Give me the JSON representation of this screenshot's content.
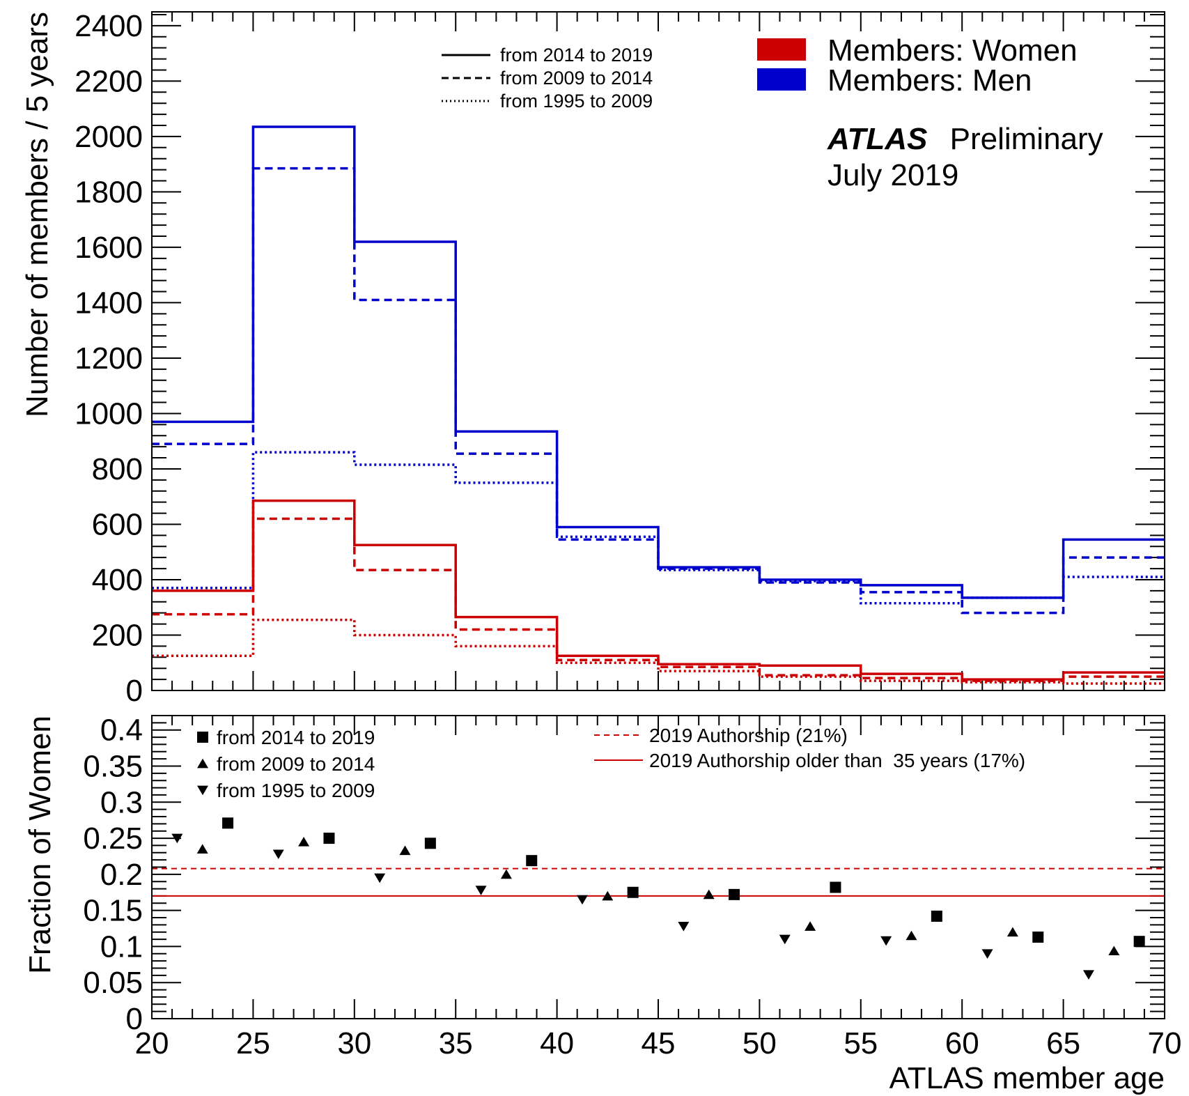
{
  "chart_data": [
    {
      "type": "histogram",
      "ylabel": "Number of members / 5 years",
      "ylim": [
        0,
        2450
      ],
      "yticks": [
        "0",
        "200",
        "400",
        "600",
        "800",
        "1000",
        "1200",
        "1400",
        "1600",
        "1800",
        "2000",
        "2200",
        "2400"
      ],
      "bins": [
        20,
        25,
        30,
        35,
        40,
        45,
        50,
        55,
        60,
        65,
        70
      ],
      "annotations": {
        "experiment": "ATLAS",
        "status": "Preliminary",
        "date": "July 2019"
      },
      "legend_periods": [
        {
          "label": "from 2014 to 2019",
          "style": "solid"
        },
        {
          "label": "from 2009 to 2014",
          "style": "dashed"
        },
        {
          "label": "from 1995 to 2009",
          "style": "dotted"
        }
      ],
      "legend_groups": [
        {
          "label": "Members: Women",
          "color": "#cc0000"
        },
        {
          "label": "Members: Men",
          "color": "#0000cc"
        }
      ],
      "series": [
        {
          "group": "men",
          "period": "from 2014 to 2019",
          "color": "#0000cc",
          "style": "solid",
          "values": [
            970,
            2035,
            1620,
            935,
            590,
            445,
            400,
            380,
            335,
            545
          ]
        },
        {
          "group": "men",
          "period": "from 2009 to 2014",
          "color": "#0000cc",
          "style": "dashed",
          "values": [
            890,
            1885,
            1410,
            855,
            545,
            440,
            390,
            355,
            280,
            480
          ]
        },
        {
          "group": "men",
          "period": "from 1995 to 2009",
          "color": "#0000cc",
          "style": "dotted",
          "values": [
            370,
            860,
            815,
            750,
            555,
            435,
            395,
            315,
            335,
            410
          ]
        },
        {
          "group": "women",
          "period": "from 2014 to 2019",
          "color": "#cc0000",
          "style": "solid",
          "values": [
            360,
            685,
            525,
            265,
            125,
            95,
            90,
            60,
            40,
            65
          ]
        },
        {
          "group": "women",
          "period": "from 2009 to 2014",
          "color": "#cc0000",
          "style": "dashed",
          "values": [
            275,
            620,
            435,
            220,
            110,
            85,
            55,
            45,
            35,
            50
          ]
        },
        {
          "group": "women",
          "period": "from 1995 to 2009",
          "color": "#cc0000",
          "style": "dotted",
          "values": [
            125,
            255,
            200,
            160,
            100,
            70,
            50,
            35,
            30,
            25
          ]
        }
      ]
    },
    {
      "type": "scatter",
      "xlabel": "ATLAS member age",
      "ylabel": "Fraction of Women",
      "xlim": [
        20,
        70
      ],
      "ylim": [
        0,
        0.42
      ],
      "xticks": [
        "20",
        "25",
        "30",
        "35",
        "40",
        "45",
        "50",
        "55",
        "60",
        "65",
        "70"
      ],
      "yticks": [
        "0",
        "0.05",
        "0.1",
        "0.15",
        "0.2",
        "0.25",
        "0.3",
        "0.35",
        "0.4"
      ],
      "series": [
        {
          "name": "from 2014 to 2019",
          "marker": "square",
          "x": [
            23.75,
            28.75,
            33.75,
            38.75,
            43.75,
            48.75,
            53.75,
            58.75,
            63.75,
            68.75
          ],
          "y": [
            0.271,
            0.25,
            0.243,
            0.219,
            0.175,
            0.172,
            0.182,
            0.142,
            0.113,
            0.107
          ]
        },
        {
          "name": "from 2009 to 2014",
          "marker": "triangle-up",
          "x": [
            22.5,
            27.5,
            32.5,
            37.5,
            42.5,
            47.5,
            52.5,
            57.5,
            62.5,
            67.5
          ],
          "y": [
            0.235,
            0.245,
            0.233,
            0.2,
            0.17,
            0.172,
            0.128,
            0.115,
            0.12,
            0.094
          ]
        },
        {
          "name": "from 1995 to 2009",
          "marker": "triangle-down",
          "x": [
            21.25,
            26.25,
            31.25,
            36.25,
            41.25,
            46.25,
            51.25,
            56.25,
            61.25,
            66.25
          ],
          "y": [
            0.25,
            0.228,
            0.195,
            0.178,
            0.165,
            0.128,
            0.11,
            0.108,
            0.09,
            0.061
          ]
        }
      ],
      "reference_lines": [
        {
          "label": "2019 Authorship (21%)",
          "value": 0.208,
          "color": "#cc0000",
          "style": "dashed"
        },
        {
          "label": "2019 Authorship older than  35 years (17%)",
          "value": 0.17,
          "color": "#cc0000",
          "style": "solid"
        }
      ]
    }
  ]
}
